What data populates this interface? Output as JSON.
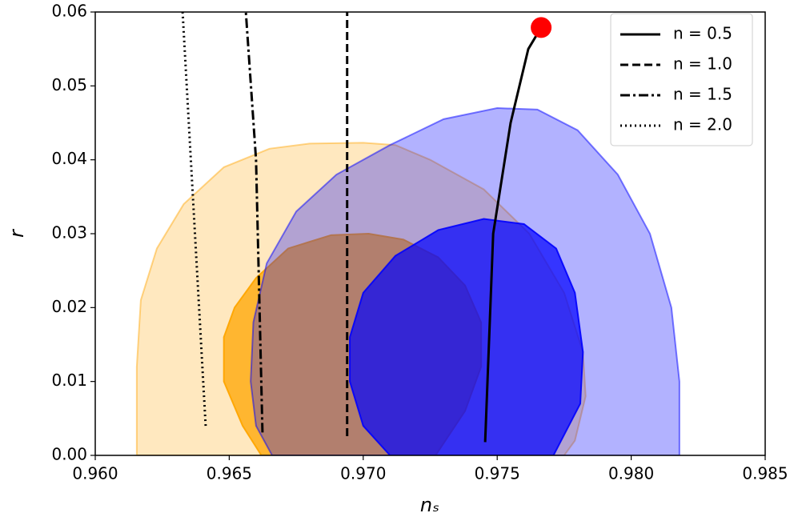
{
  "chart_data": {
    "type": "line",
    "xlabel": "nₛ",
    "ylabel": "r",
    "xlim": [
      0.96,
      0.985
    ],
    "ylim": [
      0,
      0.06
    ],
    "xticks": [
      {
        "value": 0.96,
        "label": "0.960"
      },
      0.965,
      {
        "value": 0.97,
        "label": "0.970"
      },
      0.975,
      {
        "value": 0.98,
        "label": "0.980"
      },
      0.985
    ],
    "yticks": [
      {
        "value": 0,
        "label": "0.00"
      },
      0.01,
      0.02,
      0.03,
      0.04,
      0.05,
      0.06
    ],
    "legend": "upper right",
    "contours": [
      {
        "color": "#ffa500",
        "alpha": 0.25,
        "x": [
          0.96155,
          0.96155,
          0.9617,
          0.9623,
          0.9633,
          0.9648,
          0.9665,
          0.968,
          0.97,
          0.9712,
          0.9725,
          0.9745,
          0.9762,
          0.9775,
          0.9782,
          0.9783,
          0.9779,
          0.9775
        ],
        "y": [
          0,
          0.012,
          0.021,
          0.028,
          0.034,
          0.039,
          0.0415,
          0.0422,
          0.0423,
          0.042,
          0.04,
          0.036,
          0.03,
          0.022,
          0.014,
          0.008,
          0.002,
          0
        ]
      },
      {
        "color": "#ffa500",
        "alpha": 0.75,
        "x": [
          0.9662,
          0.9655,
          0.9648,
          0.9648,
          0.9652,
          0.966,
          0.9672,
          0.9688,
          0.9702,
          0.9715,
          0.9728,
          0.9738,
          0.9744,
          0.9744,
          0.9738,
          0.9727
        ],
        "y": [
          0,
          0.004,
          0.01,
          0.016,
          0.02,
          0.024,
          0.028,
          0.0298,
          0.03,
          0.0292,
          0.0268,
          0.023,
          0.018,
          0.012,
          0.006,
          0
        ]
      },
      {
        "color": "#0000ff",
        "alpha": 0.3,
        "x": [
          0.9666,
          0.966,
          0.9658,
          0.9659,
          0.9664,
          0.9675,
          0.969,
          0.971,
          0.973,
          0.975,
          0.9765,
          0.978,
          0.9795,
          0.9807,
          0.9815,
          0.9818,
          0.9818
        ],
        "y": [
          0,
          0.004,
          0.01,
          0.018,
          0.026,
          0.033,
          0.038,
          0.042,
          0.0455,
          0.047,
          0.0468,
          0.044,
          0.038,
          0.03,
          0.02,
          0.01,
          0
        ]
      },
      {
        "color": "#0000ff",
        "alpha": 0.7,
        "x": [
          0.971,
          0.97,
          0.9695,
          0.9695,
          0.97,
          0.9712,
          0.9728,
          0.9745,
          0.976,
          0.9772,
          0.9779,
          0.9782,
          0.9781,
          0.9771
        ],
        "y": [
          0,
          0.004,
          0.01,
          0.016,
          0.022,
          0.027,
          0.0305,
          0.032,
          0.0313,
          0.028,
          0.022,
          0.014,
          0.007,
          0
        ]
      }
    ],
    "series": [
      {
        "name": "n = 0.5",
        "color": "#000000",
        "style": "solid",
        "x": [
          0.97455,
          0.97485,
          0.9755,
          0.97616,
          0.97664
        ],
        "values": [
          0.0018,
          0.03,
          0.045,
          0.055,
          0.0579
        ]
      },
      {
        "name": "n = 1.0",
        "color": "#000000",
        "style": "dashed",
        "x": [
          0.9694,
          0.9694
        ],
        "values": [
          0.0026,
          0.06
        ]
      },
      {
        "name": "n = 1.5",
        "color": "#000000",
        "style": "dashdot",
        "x": [
          0.96624,
          0.966,
          0.96562
        ],
        "values": [
          0.0031,
          0.04,
          0.06
        ]
      },
      {
        "name": "n = 2.0",
        "color": "#000000",
        "style": "dotted",
        "x": [
          0.96412,
          0.96326
        ],
        "values": [
          0.004,
          0.06
        ]
      }
    ],
    "points": {
      "color": "#ff0000",
      "x": [
        0.97664
      ],
      "y": [
        0.0579
      ]
    }
  }
}
